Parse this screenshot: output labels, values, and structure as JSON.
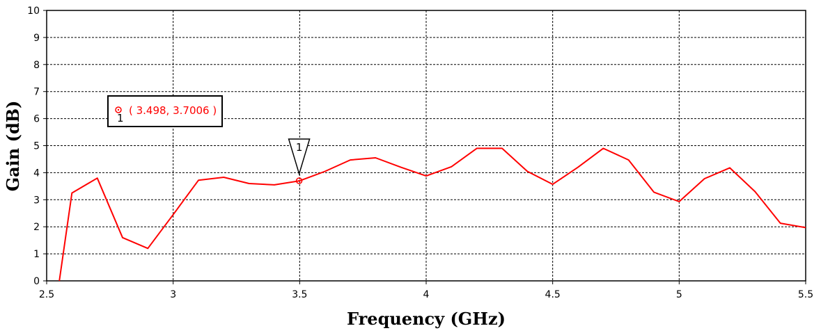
{
  "chart_data": {
    "type": "line",
    "xlabel": "Frequency (GHz)",
    "ylabel": "Gain (dB)",
    "xlim": [
      2.5,
      5.5
    ],
    "ylim": [
      0,
      10
    ],
    "x_ticks": [
      "2.5",
      "3",
      "3.5",
      "4",
      "4.5",
      "5",
      "5.5"
    ],
    "y_ticks": [
      "0",
      "1",
      "2",
      "3",
      "4",
      "5",
      "6",
      "7",
      "8",
      "9",
      "10"
    ],
    "grid": true,
    "series": [
      {
        "color": "#ff0000",
        "x": [
          2.55,
          2.6,
          2.7,
          2.8,
          2.9,
          3.0,
          3.1,
          3.2,
          3.3,
          3.4,
          3.5,
          3.6,
          3.7,
          3.8,
          3.9,
          4.0,
          4.1,
          4.2,
          4.3,
          4.4,
          4.5,
          4.6,
          4.7,
          4.8,
          4.9,
          5.0,
          5.1,
          5.2,
          5.3,
          5.4,
          5.5
        ],
        "y": [
          0.0,
          3.25,
          3.8,
          1.6,
          1.2,
          2.45,
          3.72,
          3.83,
          3.6,
          3.55,
          3.7,
          4.05,
          4.47,
          4.55,
          4.2,
          3.88,
          4.22,
          4.9,
          4.9,
          4.05,
          3.57,
          4.2,
          4.9,
          4.47,
          3.28,
          2.93,
          3.78,
          4.18,
          3.3,
          2.13,
          1.97
        ]
      }
    ],
    "marker": {
      "id": "1",
      "x": 3.498,
      "y": 3.7006,
      "label": "( 3.498, 3.7006 )"
    }
  }
}
